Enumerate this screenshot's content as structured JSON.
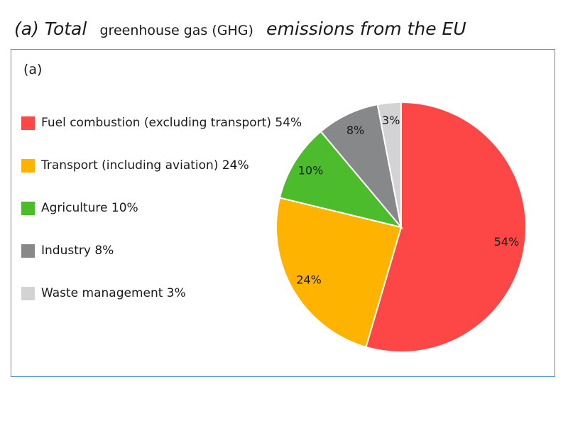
{
  "heading": {
    "part_a": "(a) Total",
    "part_b": "greenhouse gas (GHG)",
    "part_c": "emissions from the EU"
  },
  "panel_label": "(a)",
  "chart_data": {
    "type": "pie",
    "legend_position": "left",
    "slices": [
      {
        "label": "Fuel combustion (excluding transport) 54%",
        "value": 54,
        "display": "54%",
        "color": "#fd4646"
      },
      {
        "label": "Transport (including aviation) 24%",
        "value": 24,
        "display": "24%",
        "color": "#fdb300"
      },
      {
        "label": "Agriculture 10%",
        "value": 10,
        "display": "10%",
        "color": "#4cbc2c"
      },
      {
        "label": "Industry 8%",
        "value": 8,
        "display": "8%",
        "color": "#86888a"
      },
      {
        "label": "Waste management 3%",
        "value": 3,
        "display": "3%",
        "color": "#d3d3d5"
      }
    ]
  }
}
